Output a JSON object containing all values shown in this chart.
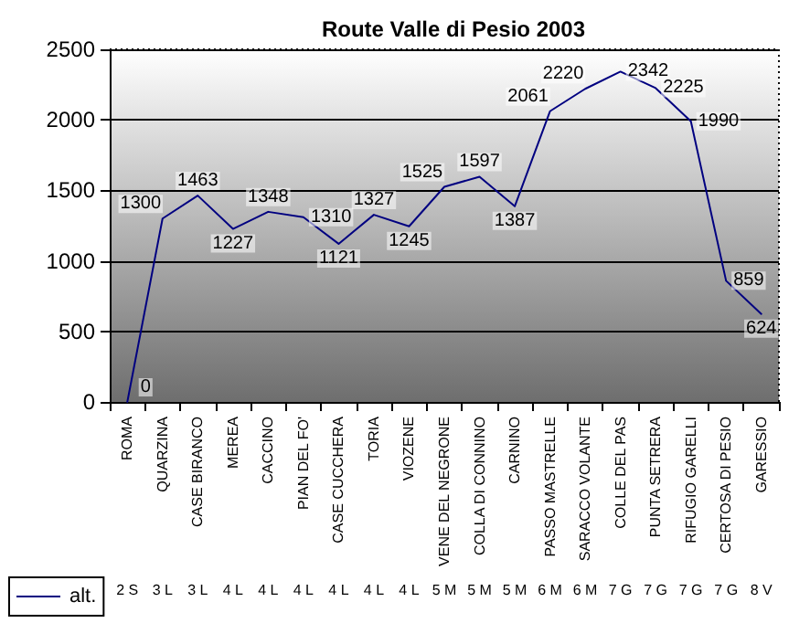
{
  "chart_data": {
    "type": "line",
    "title": "Route Valle di Pesio 2003",
    "categories": [
      "ROMA",
      "QUARZINA",
      "CASE BIRANCO",
      "MEREA",
      "CACCINO",
      "PIAN DEL FO'",
      "CASE CUCCHERA",
      "TORIA",
      "VIOZENE",
      "VENE DEL NEGRONE",
      "COLLA DI CONNINO",
      "CARNINO",
      "PASSO MASTRELLE",
      "SARACCO VOLANTE",
      "COLLE DEL PAS",
      "PUNTA SETRERA",
      "RIFUGIO GARELLI",
      "CERTOSA DI PESIO",
      "GARESSIO"
    ],
    "series": [
      {
        "name": "alt.",
        "color": "#000080",
        "values": [
          0,
          1300,
          1463,
          1227,
          1348,
          1310,
          1121,
          1327,
          1245,
          1525,
          1597,
          1387,
          2061,
          2220,
          2342,
          2225,
          1990,
          859,
          624
        ]
      }
    ],
    "annotations": [
      "2 S",
      "3 L",
      "3 L",
      "4 L",
      "4 L",
      "4 L",
      "4 L",
      "4 L",
      "4 L",
      "5 M",
      "5 M",
      "5 M",
      "6 M",
      "6 M",
      "7 G",
      "7 G",
      "7 G",
      "7 G",
      "8 V"
    ],
    "ylim": [
      0,
      2500
    ],
    "yticks": [
      0,
      500,
      1000,
      1500,
      2000,
      2500
    ],
    "grid": "y",
    "legend": "bottom left",
    "marker": "none",
    "line_style": "solid",
    "data_labels": true
  }
}
